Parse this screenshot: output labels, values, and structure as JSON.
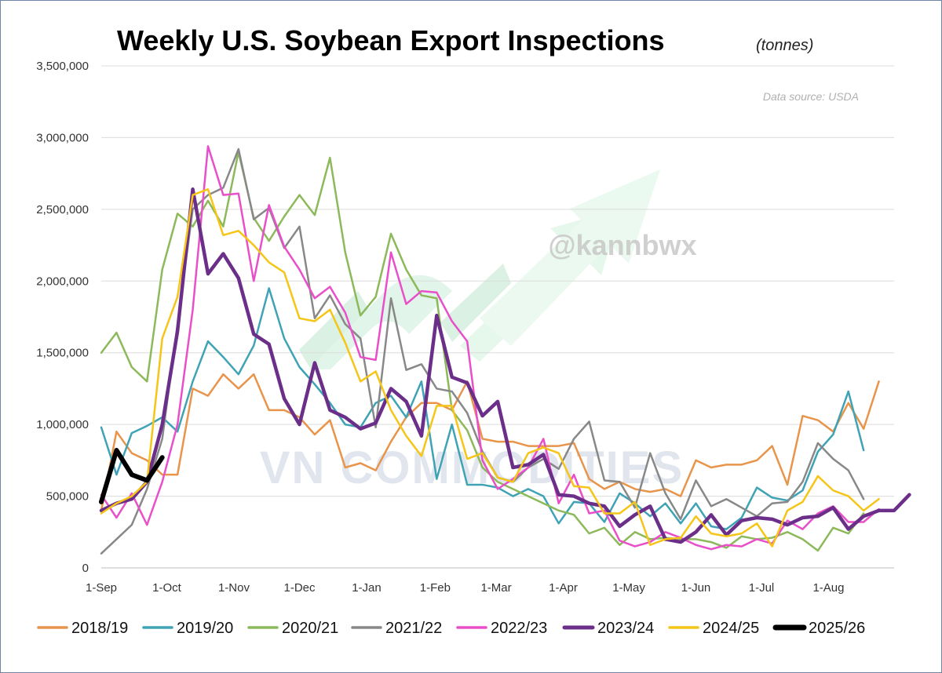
{
  "watermarks": {
    "handle": "@kannbwx",
    "brand": "VN COMMODITIES"
  },
  "chart_data": {
    "type": "line",
    "title": "Weekly U.S. Soybean Export Inspections",
    "subtitle": "(tonnes)",
    "source_note": "Data source: USDA",
    "xlabel": "",
    "ylabel": "",
    "x_unit": "week index from 1-Sep",
    "xlim": [
      0,
      52
    ],
    "ylim": [
      0,
      3500000
    ],
    "y_ticks": [
      0,
      500000,
      1000000,
      1500000,
      2000000,
      2500000,
      3000000,
      3500000
    ],
    "y_tick_labels": [
      "0",
      "500,000",
      "1,000,000",
      "1,500,000",
      "2,000,000",
      "2,500,000",
      "3,000,000",
      "3,500,000"
    ],
    "x_ticks": [
      {
        "label": "1-Sep",
        "x": 0
      },
      {
        "label": "1-Oct",
        "x": 4.3
      },
      {
        "label": "1-Nov",
        "x": 8.7
      },
      {
        "label": "1-Dec",
        "x": 13
      },
      {
        "label": "1-Jan",
        "x": 17.4
      },
      {
        "label": "1-Feb",
        "x": 21.9
      },
      {
        "label": "1-Mar",
        "x": 25.9
      },
      {
        "label": "1-Apr",
        "x": 30.3
      },
      {
        "label": "1-May",
        "x": 34.6
      },
      {
        "label": "1-Jun",
        "x": 39
      },
      {
        "label": "1-Jul",
        "x": 43.3
      },
      {
        "label": "1-Aug",
        "x": 47.7
      }
    ],
    "grid": true,
    "legend_position": "bottom",
    "series": [
      {
        "name": "2018/19",
        "color": "#e8944a",
        "width": 2.5,
        "values": [
          400000,
          950000,
          800000,
          750000,
          650000,
          650000,
          1250000,
          1200000,
          1350000,
          1250000,
          1350000,
          1100000,
          1100000,
          1050000,
          930000,
          1030000,
          700000,
          730000,
          680000,
          880000,
          1050000,
          1150000,
          1150000,
          1100000,
          1300000,
          900000,
          880000,
          880000,
          850000,
          850000,
          850000,
          870000,
          620000,
          550000,
          600000,
          550000,
          530000,
          550000,
          500000,
          750000,
          700000,
          720000,
          720000,
          750000,
          850000,
          580000,
          1060000,
          1030000,
          950000,
          1150000,
          970000,
          1300000
        ]
      },
      {
        "name": "2019/20",
        "color": "#3fa3b5",
        "width": 2.5,
        "values": [
          980000,
          650000,
          940000,
          990000,
          1050000,
          950000,
          1300000,
          1580000,
          1470000,
          1350000,
          1550000,
          1950000,
          1600000,
          1400000,
          1280000,
          1150000,
          1000000,
          980000,
          1150000,
          1200000,
          1050000,
          1300000,
          620000,
          1000000,
          580000,
          580000,
          560000,
          500000,
          550000,
          500000,
          310000,
          460000,
          450000,
          320000,
          520000,
          450000,
          360000,
          450000,
          310000,
          450000,
          290000,
          270000,
          350000,
          560000,
          490000,
          470000,
          540000,
          810000,
          930000,
          1230000,
          820000
        ]
      },
      {
        "name": "2020/21",
        "color": "#8cb95a",
        "width": 2.5,
        "values": [
          1500000,
          1640000,
          1400000,
          1300000,
          2080000,
          2470000,
          2380000,
          2560000,
          2380000,
          2900000,
          2440000,
          2280000,
          2450000,
          2600000,
          2460000,
          2860000,
          2200000,
          1760000,
          1890000,
          2330000,
          2080000,
          1900000,
          1880000,
          1100000,
          960000,
          700000,
          600000,
          550000,
          500000,
          450000,
          400000,
          370000,
          240000,
          280000,
          160000,
          250000,
          200000,
          210000,
          200000,
          200000,
          180000,
          140000,
          220000,
          200000,
          210000,
          250000,
          200000,
          120000,
          280000,
          240000,
          380000
        ]
      },
      {
        "name": "2021/22",
        "color": "#888888",
        "width": 2.5,
        "values": [
          100000,
          200000,
          300000,
          550000,
          900000,
          1700000,
          2500000,
          2600000,
          2650000,
          2920000,
          2430000,
          2510000,
          2230000,
          2380000,
          1740000,
          1900000,
          1700000,
          1600000,
          980000,
          1880000,
          1380000,
          1420000,
          1250000,
          1230000,
          1080000,
          810000,
          630000,
          600000,
          700000,
          760000,
          690000,
          900000,
          1020000,
          610000,
          600000,
          420000,
          800000,
          520000,
          340000,
          610000,
          430000,
          480000,
          420000,
          360000,
          450000,
          460000,
          600000,
          870000,
          760000,
          680000,
          480000
        ]
      },
      {
        "name": "2022/23",
        "color": "#e84fc9",
        "width": 2.5,
        "values": [
          510000,
          350000,
          520000,
          300000,
          600000,
          1000000,
          1800000,
          2940000,
          2600000,
          2610000,
          2000000,
          2530000,
          2240000,
          2080000,
          1880000,
          1960000,
          1780000,
          1470000,
          1450000,
          2200000,
          1840000,
          1930000,
          1920000,
          1720000,
          1580000,
          750000,
          550000,
          620000,
          700000,
          900000,
          450000,
          650000,
          380000,
          400000,
          190000,
          150000,
          180000,
          250000,
          210000,
          160000,
          130000,
          160000,
          150000,
          200000,
          170000,
          330000,
          270000,
          380000,
          430000,
          320000,
          320000,
          410000
        ]
      },
      {
        "name": "2023/24",
        "color": "#6b2f8a",
        "width": 4.5,
        "values": [
          400000,
          450000,
          480000,
          600000,
          1000000,
          1650000,
          2640000,
          2050000,
          2190000,
          2020000,
          1630000,
          1560000,
          1180000,
          1000000,
          1430000,
          1100000,
          1050000,
          970000,
          1010000,
          1250000,
          1160000,
          920000,
          1760000,
          1330000,
          1290000,
          1060000,
          1160000,
          700000,
          720000,
          790000,
          510000,
          500000,
          450000,
          430000,
          290000,
          370000,
          430000,
          200000,
          180000,
          250000,
          370000,
          230000,
          330000,
          350000,
          340000,
          300000,
          350000,
          360000,
          420000,
          270000,
          360000,
          400000,
          400000,
          510000
        ]
      },
      {
        "name": "2024/25",
        "color": "#f5c518",
        "width": 2.5,
        "values": [
          380000,
          450000,
          500000,
          600000,
          1600000,
          1890000,
          2600000,
          2640000,
          2320000,
          2350000,
          2250000,
          2130000,
          2060000,
          1740000,
          1720000,
          1800000,
          1570000,
          1300000,
          1370000,
          1100000,
          920000,
          780000,
          1130000,
          1130000,
          760000,
          800000,
          630000,
          600000,
          800000,
          840000,
          800000,
          570000,
          560000,
          380000,
          380000,
          460000,
          160000,
          200000,
          210000,
          360000,
          240000,
          220000,
          240000,
          310000,
          150000,
          400000,
          460000,
          640000,
          540000,
          500000,
          400000,
          480000
        ]
      },
      {
        "name": "2025/26",
        "color": "#000000",
        "width": 6,
        "values": [
          460000,
          820000,
          650000,
          610000,
          770000
        ]
      }
    ]
  }
}
